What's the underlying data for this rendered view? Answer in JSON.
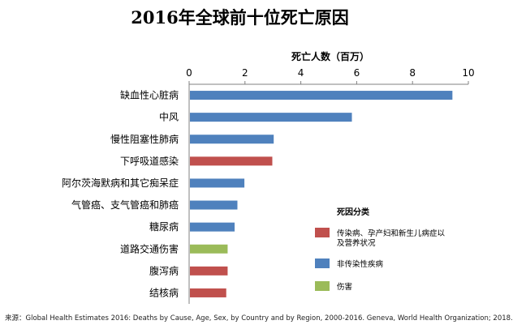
{
  "chart_data": {
    "type": "bar",
    "orientation": "horizontal",
    "title": "2016年全球前十位死亡原因",
    "xlabel": "死亡人数（百万）",
    "xlim": [
      0,
      10
    ],
    "xticks": [
      0,
      2,
      4,
      6,
      8,
      10
    ],
    "grid": false,
    "categories": [
      "缺血性心脏病",
      "中风",
      "慢性阻塞性肺病",
      "下呼吸道感染",
      "阿尔茨海默病和其它痴呆症",
      "气管癌、支气管癌和肺癌",
      "糖尿病",
      "道路交通伤害",
      "腹泻病",
      "结核病"
    ],
    "values": [
      9.4,
      5.8,
      3.0,
      2.95,
      1.95,
      1.7,
      1.6,
      1.35,
      1.35,
      1.3
    ],
    "groups": [
      "noncommunicable",
      "noncommunicable",
      "noncommunicable",
      "communicable",
      "noncommunicable",
      "noncommunicable",
      "noncommunicable",
      "injury",
      "communicable",
      "communicable"
    ],
    "legend": {
      "title": "死因分类",
      "position": "right",
      "items": [
        {
          "key": "communicable",
          "label": "传染病、孕产妇和新生儿病症以及营养状况",
          "color": "#c0504d"
        },
        {
          "key": "noncommunicable",
          "label": "非传染性疾病",
          "color": "#4f81bd"
        },
        {
          "key": "injury",
          "label": "伤害",
          "color": "#9bbb59"
        }
      ]
    }
  },
  "source": "来源：Global Health Estimates 2016: Deaths by Cause, Age, Sex, by Country and by Region, 2000-2016. Geneva, World Health Organization; 2018."
}
